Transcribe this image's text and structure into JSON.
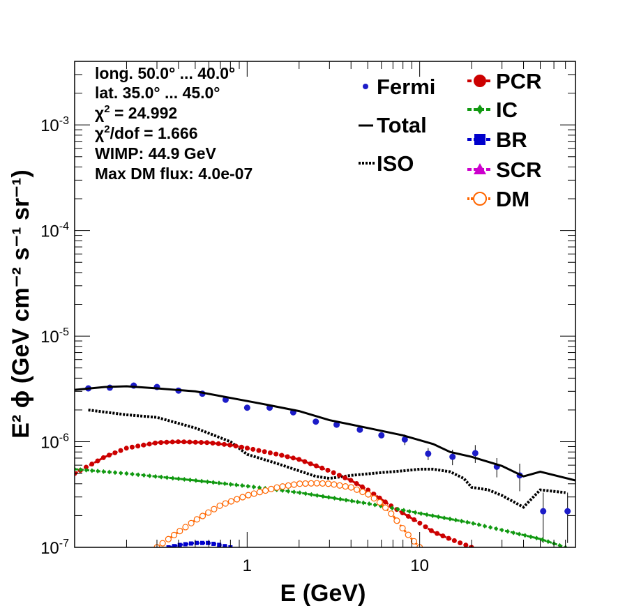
{
  "info": {
    "lines": [
      "long. 50.0° ... 40.0°",
      "lat. 35.0° ... 45.0°"
    ],
    "chi2_label": "χ",
    "chi2_sup": "2",
    "chi2_value": " = 24.992",
    "chi2dof_label": "χ",
    "chi2dof_sup": "2",
    "chi2dof_value": "/dof = 1.666",
    "wimp": "WIMP: 44.9 GeV",
    "maxdm": "Max DM flux: 4.0e-07"
  },
  "axes": {
    "x_title": "E (GeV)",
    "y_title": "E² ϕ (GeV cm⁻² s⁻¹ sr⁻¹)",
    "x_tick_labels": [
      "1",
      "10"
    ],
    "y_tick_labels": [
      {
        "base": "10",
        "exp": "-7",
        "value": 1e-07
      },
      {
        "base": "10",
        "exp": "-6",
        "value": 1e-06
      },
      {
        "base": "10",
        "exp": "-5",
        "value": 1e-05
      },
      {
        "base": "10",
        "exp": "-4",
        "value": 0.0001
      },
      {
        "base": "10",
        "exp": "-3",
        "value": 0.001
      }
    ]
  },
  "legend": {
    "fermi": "Fermi",
    "total": "Total",
    "iso": "ISO",
    "pcr": "PCR",
    "ic": "IC",
    "br": "BR",
    "scr": "SCR",
    "dm": "DM"
  },
  "colors": {
    "fermi": "#1c1cc8",
    "total": "#000000",
    "iso": "#000000",
    "pcr": "#cc0000",
    "ic": "#119911",
    "br": "#0000cc",
    "scr": "#cc00cc",
    "dm": "#ff6600"
  },
  "chart_data": {
    "type": "line",
    "title": "",
    "xlabel": "E (GeV)",
    "ylabel": "E² ϕ (GeV cm⁻² s⁻¹ sr⁻¹)",
    "xscale": "log",
    "yscale": "log",
    "xlim": [
      0.1,
      80
    ],
    "ylim": [
      1e-07,
      0.004
    ],
    "grid": false,
    "legend_position": "top-right",
    "series": [
      {
        "name": "Fermi",
        "style": "points-errorbars",
        "x": [
          0.12,
          0.16,
          0.22,
          0.3,
          0.4,
          0.55,
          0.75,
          1.0,
          1.35,
          1.85,
          2.5,
          3.3,
          4.5,
          6.0,
          8.2,
          11.2,
          15.5,
          21,
          28,
          38,
          52,
          72
        ],
        "y": [
          3.2e-06,
          3.25e-06,
          3.4e-06,
          3.3e-06,
          3.05e-06,
          2.85e-06,
          2.5e-06,
          2.1e-06,
          2.1e-06,
          1.9e-06,
          1.55e-06,
          1.45e-06,
          1.3e-06,
          1.15e-06,
          1.05e-06,
          7.7e-07,
          7.2e-07,
          7.8e-07,
          5.8e-07,
          4.8e-07,
          2.2e-07,
          2.2e-07
        ],
        "yerr_up": [
          0,
          0,
          0,
          0,
          0,
          0,
          0,
          0,
          0,
          0,
          0,
          0,
          0,
          0,
          1.2e-07,
          1e-07,
          1.2e-07,
          1.5e-07,
          1.2e-07,
          1.4e-07,
          1.1e-07,
          1.1e-07
        ],
        "yerr_down": [
          0,
          0,
          0,
          0,
          0,
          0,
          0,
          0,
          0,
          0,
          0,
          0,
          0,
          0,
          1.2e-07,
          1e-07,
          1.2e-07,
          1.5e-07,
          1.2e-07,
          1.4e-07,
          1.1e-07,
          1.1e-07
        ]
      },
      {
        "name": "Total",
        "style": "solid",
        "x": [
          0.1,
          0.15,
          0.2,
          0.3,
          0.5,
          0.8,
          1.2,
          2.0,
          3.0,
          5.0,
          8.0,
          12.0,
          15.0,
          20.0,
          30.0,
          40.0,
          50.0,
          80.0
        ],
        "y": [
          3.1e-06,
          3.3e-06,
          3.35e-06,
          3.2e-06,
          3e-06,
          2.6e-06,
          2.3e-06,
          1.95e-06,
          1.6e-06,
          1.35e-06,
          1.15e-06,
          9.5e-07,
          8e-07,
          7.2e-07,
          5.9e-07,
          4.7e-07,
          5.2e-07,
          4.3e-07
        ]
      },
      {
        "name": "ISO",
        "style": "dotted",
        "x": [
          0.12,
          0.2,
          0.3,
          0.5,
          0.8,
          1.0,
          1.5,
          2.0,
          2.5,
          3.0,
          4.0,
          6.0,
          8.0,
          10.0,
          12.0,
          15.0,
          18.0,
          20.0,
          25.0,
          30.0,
          40.0,
          50.0,
          70.0
        ],
        "y": [
          2e-06,
          1.8e-06,
          1.7e-06,
          1.35e-06,
          1e-06,
          7.6e-07,
          6.2e-07,
          5.3e-07,
          4.7e-07,
          4.5e-07,
          4.8e-07,
          5.1e-07,
          5.3e-07,
          5.5e-07,
          5.5e-07,
          5.2e-07,
          4.5e-07,
          3.7e-07,
          3.5e-07,
          3.1e-07,
          2.4e-07,
          3.5e-07,
          3.3e-07
        ]
      },
      {
        "name": "PCR",
        "style": "dashed-markers",
        "x": [
          0.1,
          0.15,
          0.2,
          0.3,
          0.4,
          0.6,
          0.8,
          1.0,
          1.5,
          2.0,
          3.0,
          4.0,
          5.0,
          7.0,
          10.0,
          12.0,
          15.0,
          20.0
        ],
        "y": [
          5e-07,
          7.2e-07,
          8.7e-07,
          9.8e-07,
          1e-06,
          9.8e-07,
          9.3e-07,
          8.7e-07,
          7.6e-07,
          6.8e-07,
          5.3e-07,
          4.3e-07,
          3.5e-07,
          2.4e-07,
          1.7e-07,
          1.4e-07,
          1.2e-07,
          1e-07
        ]
      },
      {
        "name": "IC",
        "style": "dashed-markers",
        "x": [
          0.1,
          0.2,
          0.5,
          1.0,
          2.0,
          5.0,
          10.0,
          20.0,
          50.0,
          70.0
        ],
        "y": [
          5.5e-07,
          5e-07,
          4.3e-07,
          3.8e-07,
          3.3e-07,
          2.6e-07,
          2.1e-07,
          1.7e-07,
          1.2e-07,
          1e-07
        ]
      },
      {
        "name": "BR",
        "style": "dashed-markers",
        "x": [
          0.35,
          0.4,
          0.5,
          0.6,
          0.7,
          0.8
        ],
        "y": [
          1e-07,
          1.05e-07,
          1.1e-07,
          1.1e-07,
          1.05e-07,
          1e-07
        ]
      },
      {
        "name": "DM",
        "style": "dashed-markers",
        "x": [
          0.3,
          0.4,
          0.5,
          0.7,
          1.0,
          1.5,
          2.0,
          2.5,
          3.0,
          4.0,
          5.0,
          6.0,
          7.0,
          8.0,
          9.0,
          10.0
        ],
        "y": [
          1e-07,
          1.4e-07,
          1.8e-07,
          2.5e-07,
          3.1e-07,
          3.7e-07,
          4e-07,
          4.05e-07,
          4e-07,
          3.7e-07,
          3.2e-07,
          2.6e-07,
          2e-07,
          1.5e-07,
          1.2e-07,
          1e-07
        ]
      }
    ]
  }
}
